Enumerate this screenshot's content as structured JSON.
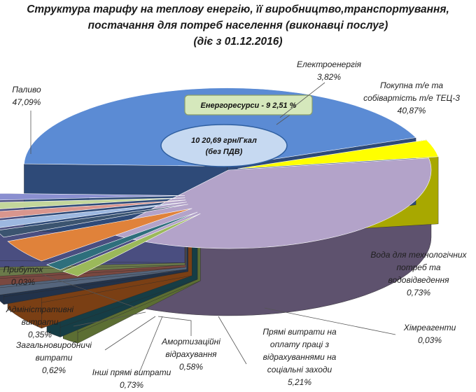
{
  "chart_data": {
    "type": "pie",
    "variant": "3d-exploded",
    "title_lines": [
      "Структура тарифу на теплову енергію, її виробництво,транспортування,",
      "постачання для потреб населення (виконавці послуг)",
      "(діє з 01.12.2016)"
    ],
    "center_label": [
      "10 20,69  грн/Гкал",
      "(без ПДВ)"
    ],
    "group_label": "Енергоресурси  -  9 2,51 %",
    "slices": [
      {
        "key": "fuel",
        "label_lines": [
          "Паливо"
        ],
        "value_text": "47,09%",
        "value": 47.09,
        "color": "#5b8bd4",
        "side": "#2e4a78"
      },
      {
        "key": "electricity",
        "label_lines": [
          "Електроенергія"
        ],
        "value_text": "3,82%",
        "value": 3.82,
        "color": "#ffff00",
        "side": "#a8a800"
      },
      {
        "key": "heat_purchase",
        "label_lines": [
          "Покупна т/е та",
          "собівартість т/е ТЕЦ-3"
        ],
        "value_text": "40,87%",
        "value": 40.87,
        "color": "#b3a3c9",
        "side": "#5e526e"
      },
      {
        "key": "water",
        "label_lines": [
          "Вода для технологічних",
          "потреб  та",
          "водовідведення"
        ],
        "value_text": "0,73%",
        "value": 0.73,
        "color": "#9bb95a",
        "side": "#5c6e33"
      },
      {
        "key": "reagents",
        "label_lines": [
          "Хімреагенти"
        ],
        "value_text": "0,03%",
        "value": 0.03,
        "color": "#2e6f7c",
        "side": "#163d45"
      },
      {
        "key": "direct_labor",
        "label_lines": [
          "Прямі витрати на",
          "оплату праці з",
          "відрахуваннями на",
          "соціальні заходи"
        ],
        "value_text": "5,21%",
        "value": 5.21,
        "color": "#e0823a",
        "side": "#7a3f14"
      },
      {
        "key": "amortization",
        "label_lines": [
          "Амортизаційні",
          "відрахування"
        ],
        "value_text": "0,58%",
        "value": 0.58,
        "color": "#3b5470",
        "side": "#22324a"
      },
      {
        "key": "other_direct",
        "label_lines": [
          "Інші прямі витрати"
        ],
        "value_text": "0,73%",
        "value": 0.73,
        "color": "#9db8e0",
        "side": "#55657c"
      },
      {
        "key": "general_production",
        "label_lines": [
          "Загальновиробничі",
          "витрати"
        ],
        "value_text": "0,62%",
        "value": 0.62,
        "color": "#d9968e",
        "side": "#7a4840"
      },
      {
        "key": "administrative",
        "label_lines": [
          "Адміністративні",
          "витрати"
        ],
        "value_text": "0,35%",
        "value": 0.35,
        "color": "#c3d69b",
        "side": "#6b7a4a"
      },
      {
        "key": "profit",
        "label_lines": [
          "Прибуток"
        ],
        "value_text": "0,03%",
        "value": 0.03,
        "color": "#8a8fd0",
        "side": "#4a4e80"
      }
    ]
  }
}
